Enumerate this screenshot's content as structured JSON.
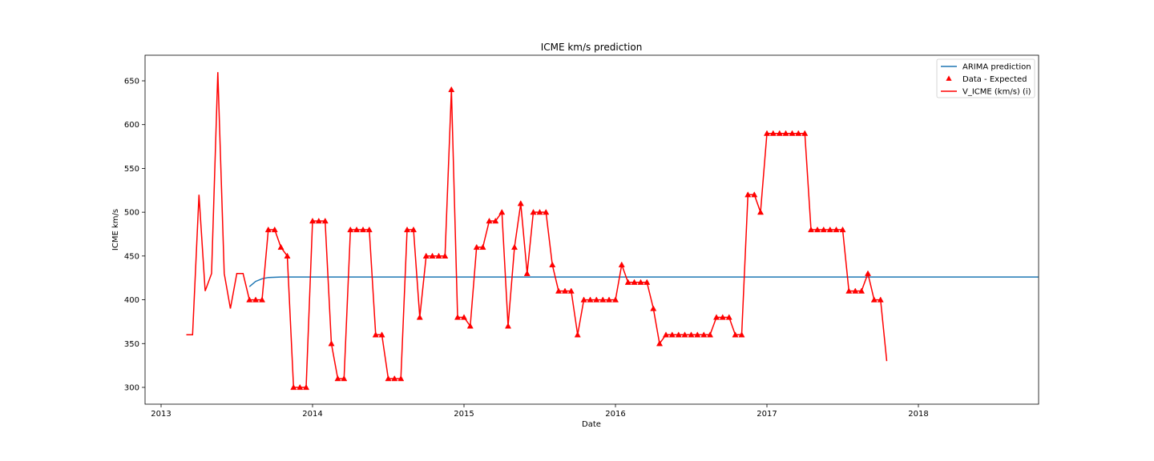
{
  "chart_data": {
    "type": "line",
    "title": "ICME km/s prediction",
    "xlabel": "Date",
    "ylabel": "ICME km/s",
    "x_ticks": [
      "2013",
      "2014",
      "2015",
      "2016",
      "2017",
      "2018"
    ],
    "y_ticks": [
      300,
      350,
      400,
      450,
      500,
      550,
      600,
      650
    ],
    "xlim": [
      "2012-11-01",
      "2018-11-01"
    ],
    "ylim": [
      280,
      675
    ],
    "grid": false,
    "legend_position": "top-right",
    "x": [
      "2013-03",
      "2013-04",
      "2013-05",
      "2013-06",
      "2013-07",
      "2013-08",
      "2013-09",
      "2013-10",
      "2013-11",
      "2013-12",
      "2014-01",
      "2014-02",
      "2014-03",
      "2014-04",
      "2014-05",
      "2014-06",
      "2014-07",
      "2014-08",
      "2014-09",
      "2014-10",
      "2014-11",
      "2014-12",
      "2015-01",
      "2015-02",
      "2015-03",
      "2015-04",
      "2015-05",
      "2015-06",
      "2015-07",
      "2015-08",
      "2015-09",
      "2015-10",
      "2015-11",
      "2015-12",
      "2016-01",
      "2016-02",
      "2016-03",
      "2016-04",
      "2016-05",
      "2016-06",
      "2016-07",
      "2016-08",
      "2016-09",
      "2016-10",
      "2016-11",
      "2016-12",
      "2017-01",
      "2017-02",
      "2017-03",
      "2017-04",
      "2017-05",
      "2017-06",
      "2017-07",
      "2017-08",
      "2017-09",
      "2017-10",
      "2017-11",
      "2017-12",
      "2018-01",
      "2018-02",
      "2018-03",
      "2018-04",
      "2018-05",
      "2018-06",
      "2018-07"
    ],
    "x_offsets_months": [
      [
        0,
        0.5
      ],
      [
        0,
        0.5
      ],
      [
        0,
        0.5
      ],
      [
        0,
        0.5
      ],
      [
        0,
        0.5
      ],
      [
        0,
        0.5
      ],
      [
        0,
        0.5
      ],
      [
        0,
        0.5
      ],
      [
        0,
        0.5
      ],
      [
        0,
        0.5
      ],
      [
        0,
        0.5
      ],
      [
        0,
        0.5
      ],
      [
        0,
        0.5
      ],
      [
        0,
        0.5
      ],
      [
        0,
        0.5
      ],
      [
        0,
        0.5
      ],
      [
        0,
        0.5
      ],
      [
        0,
        0.5
      ],
      [
        0,
        0.5
      ],
      [
        0,
        0.5
      ],
      [
        0,
        0.5
      ],
      [
        0,
        0.5
      ],
      [
        0,
        0.5
      ],
      [
        0,
        0.5
      ],
      [
        0,
        0.5
      ],
      [
        0,
        0.5
      ],
      [
        0,
        0.5
      ],
      [
        0,
        0.5
      ],
      [
        0,
        0.5
      ],
      [
        0,
        0.5
      ],
      [
        0,
        0.5
      ],
      [
        0,
        0.5
      ],
      [
        0,
        0.5
      ],
      [
        0,
        0.5
      ],
      [
        0,
        0.5
      ],
      [
        0,
        0.5
      ],
      [
        0,
        0.5
      ],
      [
        0,
        0.5
      ],
      [
        0,
        0.5
      ],
      [
        0,
        0.5
      ],
      [
        0,
        0.5
      ],
      [
        0,
        0.5
      ],
      [
        0,
        0.5
      ],
      [
        0,
        0.5
      ],
      [
        0,
        0.5
      ],
      [
        0,
        0.5
      ],
      [
        0,
        0.5
      ],
      [
        0,
        0.5
      ],
      [
        0,
        0.5
      ],
      [
        0,
        0.5
      ],
      [
        0,
        0.5
      ],
      [
        0,
        0.5
      ],
      [
        0,
        0.5
      ],
      [
        0,
        0.5
      ],
      [
        0,
        0.5
      ],
      [
        0,
        0.5
      ],
      [
        0,
        0.5
      ],
      [
        0,
        0.5
      ],
      [
        0,
        0.5
      ],
      [
        0,
        0.5
      ],
      [
        0,
        0.5
      ],
      [
        0,
        0.5
      ],
      [
        0,
        0.5
      ],
      [
        0,
        0.5
      ],
      [
        0,
        0.5
      ]
    ],
    "series": [
      {
        "name": "V_ICME (km/s) (i)",
        "kind": "line",
        "color": "#ff0000",
        "points": [
          [
            "2013-03-01",
            360
          ],
          [
            "2013-03-16",
            360
          ],
          [
            "2013-04-01",
            520
          ],
          [
            "2013-04-16",
            410
          ],
          [
            "2013-05-01",
            430
          ],
          [
            "2013-05-16",
            660
          ],
          [
            "2013-06-01",
            430
          ],
          [
            "2013-06-16",
            390
          ],
          [
            "2013-07-01",
            430
          ],
          [
            "2013-07-16",
            430
          ],
          [
            "2013-08-01",
            400
          ],
          [
            "2013-08-16",
            400
          ],
          [
            "2013-09-01",
            400
          ],
          [
            "2013-09-16",
            480
          ],
          [
            "2013-10-01",
            480
          ],
          [
            "2013-10-16",
            460
          ],
          [
            "2013-11-01",
            450
          ],
          [
            "2013-11-16",
            300
          ],
          [
            "2013-12-01",
            300
          ],
          [
            "2013-12-16",
            300
          ],
          [
            "2014-01-01",
            490
          ],
          [
            "2014-01-16",
            490
          ],
          [
            "2014-02-01",
            490
          ],
          [
            "2014-02-16",
            350
          ],
          [
            "2014-03-01",
            310
          ],
          [
            "2014-03-16",
            310
          ],
          [
            "2014-04-01",
            480
          ],
          [
            "2014-04-16",
            480
          ],
          [
            "2014-05-01",
            480
          ],
          [
            "2014-05-16",
            480
          ],
          [
            "2014-06-01",
            360
          ],
          [
            "2014-06-16",
            360
          ],
          [
            "2014-07-01",
            310
          ],
          [
            "2014-07-16",
            310
          ],
          [
            "2014-08-01",
            310
          ],
          [
            "2014-08-16",
            480
          ],
          [
            "2014-09-01",
            480
          ],
          [
            "2014-09-16",
            380
          ],
          [
            "2014-10-01",
            450
          ],
          [
            "2014-10-16",
            450
          ],
          [
            "2014-11-01",
            450
          ],
          [
            "2014-11-16",
            450
          ],
          [
            "2014-12-01",
            640
          ],
          [
            "2014-12-16",
            380
          ],
          [
            "2015-01-01",
            380
          ],
          [
            "2015-01-16",
            370
          ],
          [
            "2015-02-01",
            460
          ],
          [
            "2015-02-16",
            460
          ],
          [
            "2015-03-01",
            490
          ],
          [
            "2015-03-16",
            490
          ],
          [
            "2015-04-01",
            500
          ],
          [
            "2015-04-16",
            370
          ],
          [
            "2015-05-01",
            460
          ],
          [
            "2015-05-16",
            510
          ],
          [
            "2015-06-01",
            430
          ],
          [
            "2015-06-16",
            500
          ],
          [
            "2015-07-01",
            500
          ],
          [
            "2015-07-16",
            500
          ],
          [
            "2015-08-01",
            440
          ],
          [
            "2015-08-16",
            410
          ],
          [
            "2015-09-01",
            410
          ],
          [
            "2015-09-16",
            410
          ],
          [
            "2015-10-01",
            360
          ],
          [
            "2015-10-16",
            400
          ],
          [
            "2015-11-01",
            400
          ],
          [
            "2015-11-16",
            400
          ],
          [
            "2015-12-01",
            400
          ],
          [
            "2015-12-16",
            400
          ],
          [
            "2016-01-01",
            400
          ],
          [
            "2016-01-16",
            440
          ],
          [
            "2016-02-01",
            420
          ],
          [
            "2016-02-16",
            420
          ],
          [
            "2016-03-01",
            420
          ],
          [
            "2016-03-16",
            420
          ],
          [
            "2016-04-01",
            390
          ],
          [
            "2016-04-16",
            350
          ],
          [
            "2016-05-01",
            360
          ],
          [
            "2016-05-16",
            360
          ],
          [
            "2016-06-01",
            360
          ],
          [
            "2016-06-16",
            360
          ],
          [
            "2016-07-01",
            360
          ],
          [
            "2016-07-16",
            360
          ],
          [
            "2016-08-01",
            360
          ],
          [
            "2016-08-16",
            360
          ],
          [
            "2016-09-01",
            380
          ],
          [
            "2016-09-16",
            380
          ],
          [
            "2016-10-01",
            380
          ],
          [
            "2016-10-16",
            360
          ],
          [
            "2016-11-01",
            360
          ],
          [
            "2016-11-16",
            520
          ],
          [
            "2016-12-01",
            520
          ],
          [
            "2016-12-16",
            500
          ],
          [
            "2017-01-01",
            590
          ],
          [
            "2017-01-16",
            590
          ],
          [
            "2017-02-01",
            590
          ],
          [
            "2017-02-16",
            590
          ],
          [
            "2017-03-01",
            590
          ],
          [
            "2017-03-16",
            590
          ],
          [
            "2017-04-01",
            590
          ],
          [
            "2017-04-16",
            480
          ],
          [
            "2017-05-01",
            480
          ],
          [
            "2017-05-16",
            480
          ],
          [
            "2017-06-01",
            480
          ],
          [
            "2017-06-16",
            480
          ],
          [
            "2017-07-01",
            480
          ],
          [
            "2017-07-16",
            410
          ],
          [
            "2017-08-01",
            410
          ],
          [
            "2017-08-16",
            410
          ],
          [
            "2017-09-01",
            430
          ],
          [
            "2017-09-16",
            400
          ],
          [
            "2017-10-01",
            400
          ],
          [
            "2017-10-16",
            330
          ]
        ]
      }
    ]
  }
}
